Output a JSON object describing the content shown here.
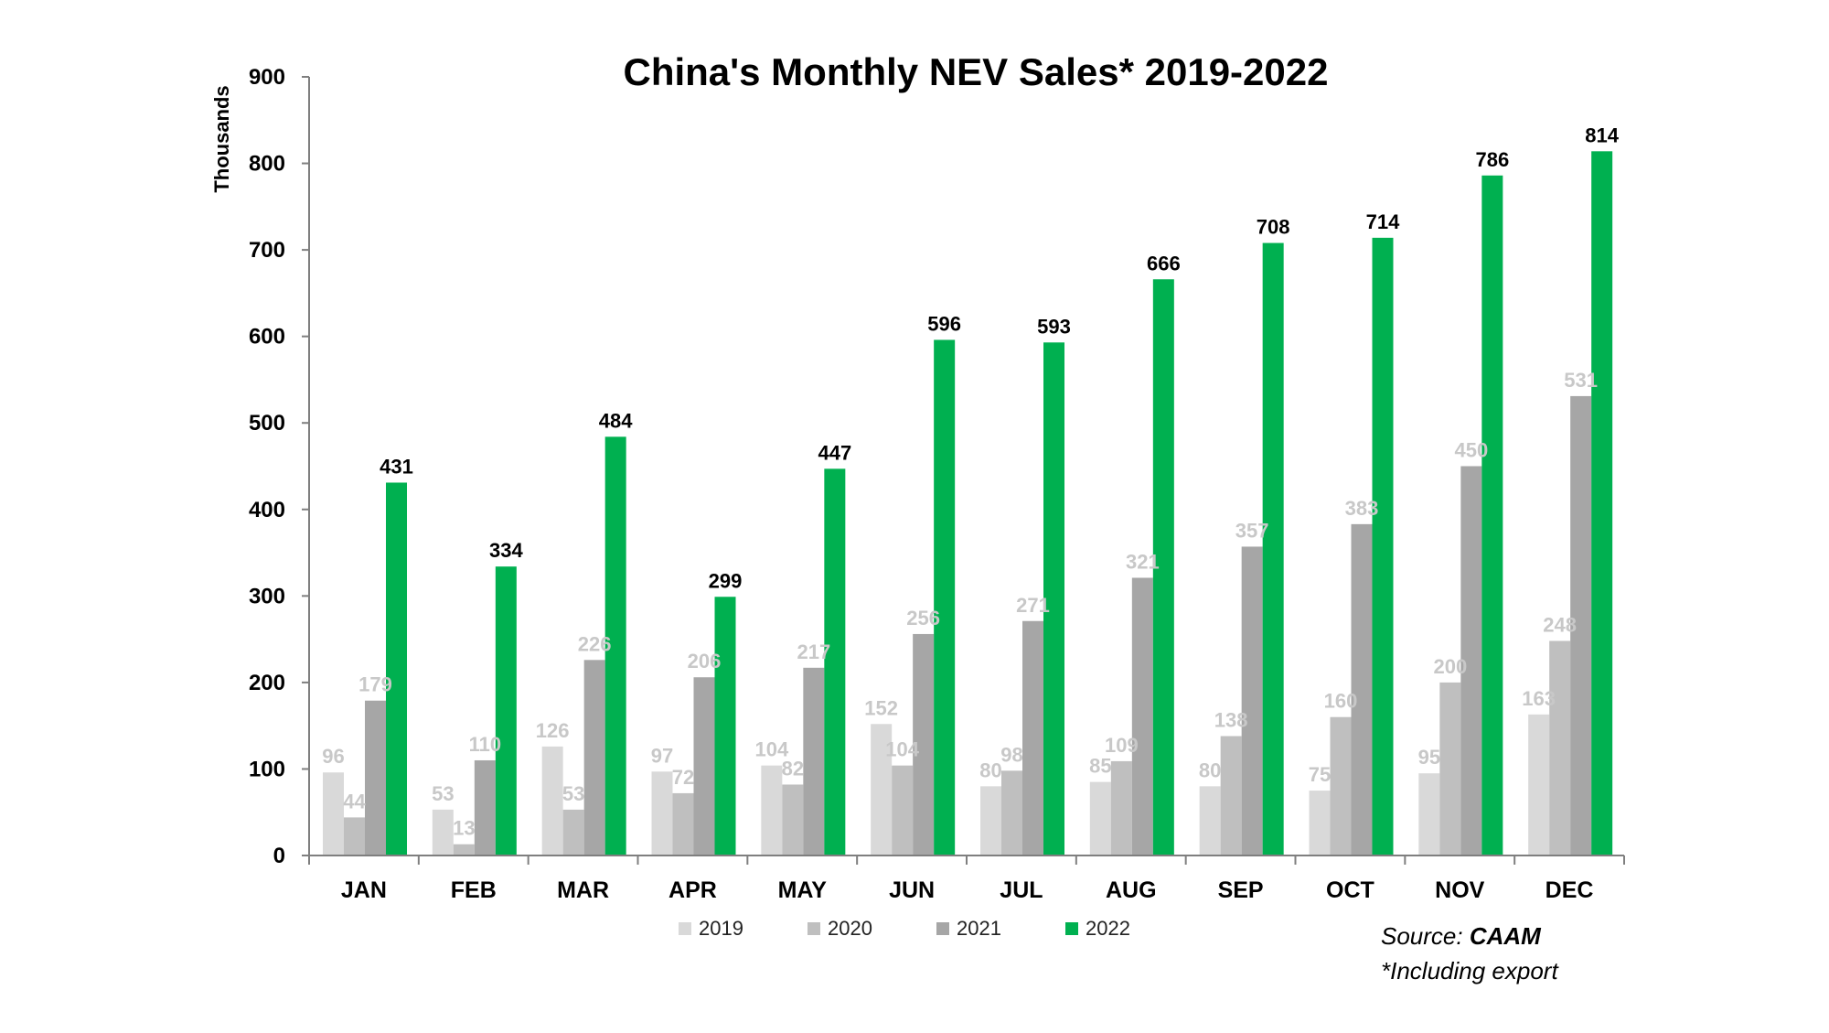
{
  "chart_data": {
    "type": "bar",
    "title": "China's Monthly NEV Sales* 2019-2022",
    "ylabel": "Thousands",
    "xlabel": "",
    "ylim": [
      0,
      900
    ],
    "yticks": [
      "0",
      "100",
      "200",
      "300",
      "400",
      "500",
      "600",
      "700",
      "800",
      "900"
    ],
    "categories": [
      "JAN",
      "FEB",
      "MAR",
      "APR",
      "MAY",
      "JUN",
      "JUL",
      "AUG",
      "SEP",
      "OCT",
      "NOV",
      "DEC"
    ],
    "series": [
      {
        "name": "2019",
        "color": "#d9d9d9",
        "label_color": "#c8c8c8",
        "values": [
          96,
          53,
          126,
          97,
          104,
          152,
          80,
          85,
          80,
          75,
          95,
          163
        ]
      },
      {
        "name": "2020",
        "color": "#bfbfbf",
        "label_color": "#c8c8c8",
        "values": [
          44,
          13,
          53,
          72,
          82,
          104,
          98,
          109,
          138,
          160,
          200,
          248
        ]
      },
      {
        "name": "2021",
        "color": "#a6a6a6",
        "label_color": "#c8c8c8",
        "values": [
          179,
          110,
          226,
          206,
          217,
          256,
          271,
          321,
          357,
          383,
          450,
          531
        ]
      },
      {
        "name": "2022",
        "color": "#00b050",
        "label_color": "#000000",
        "values": [
          431,
          334,
          484,
          299,
          447,
          596,
          593,
          666,
          708,
          714,
          786,
          814
        ]
      }
    ],
    "legend_position": "bottom",
    "grid": false
  },
  "notes": {
    "source_prefix": "Source: ",
    "source_name": "CAAM",
    "footnote": "*Including export"
  }
}
